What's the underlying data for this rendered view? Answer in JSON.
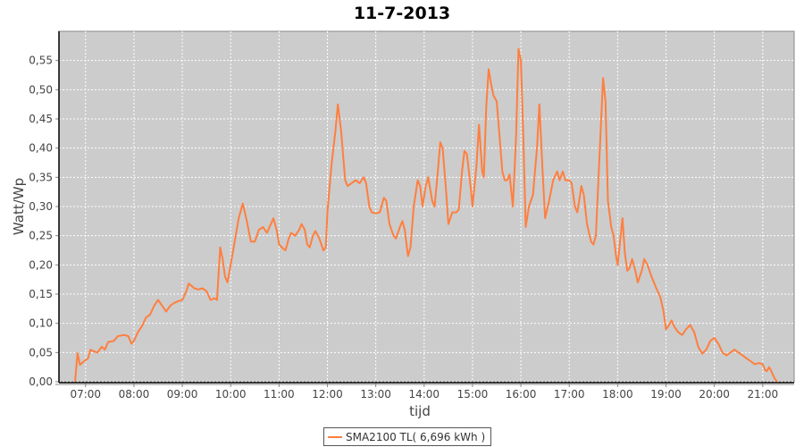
{
  "chart_data": {
    "type": "line",
    "title": "11-7-2013",
    "xlabel": "tijd",
    "ylabel": "Watt/Wp",
    "xlim": [
      "06:27",
      "21:39"
    ],
    "ylim": [
      0,
      0.6
    ],
    "grid": true,
    "legend_placement": "bottom",
    "plot_background": "#cccccc",
    "x_ticks": [
      "07:00",
      "08:00",
      "09:00",
      "10:00",
      "11:00",
      "12:00",
      "13:00",
      "14:00",
      "15:00",
      "16:00",
      "17:00",
      "18:00",
      "19:00",
      "20:00",
      "21:00"
    ],
    "y_ticks": [
      "0,00",
      "0,05",
      "0,10",
      "0,15",
      "0,20",
      "0,25",
      "0,30",
      "0,35",
      "0,40",
      "0,45",
      "0,50",
      "0,55"
    ],
    "series": [
      {
        "name": "SMA2100 TL( 6,696 kWh )",
        "color": "#ff7f3f",
        "x": [
          "06:47",
          "06:50",
          "06:53",
          "06:58",
          "07:03",
          "07:06",
          "07:10",
          "07:15",
          "07:20",
          "07:24",
          "07:28",
          "07:35",
          "07:40",
          "07:48",
          "07:53",
          "07:57",
          "08:00",
          "08:05",
          "08:10",
          "08:15",
          "08:20",
          "08:25",
          "08:30",
          "08:35",
          "08:40",
          "08:45",
          "08:50",
          "08:55",
          "09:00",
          "09:05",
          "09:08",
          "09:15",
          "09:20",
          "09:25",
          "09:30",
          "09:35",
          "09:40",
          "09:43",
          "09:47",
          "09:50",
          "09:53",
          "09:56",
          "10:00",
          "10:05",
          "10:10",
          "10:15",
          "10:20",
          "10:25",
          "10:30",
          "10:35",
          "10:40",
          "10:45",
          "10:50",
          "10:53",
          "10:57",
          "11:00",
          "11:05",
          "11:08",
          "11:12",
          "11:15",
          "11:20",
          "11:25",
          "11:28",
          "11:32",
          "11:35",
          "11:38",
          "11:42",
          "11:45",
          "11:50",
          "11:55",
          "11:58",
          "12:00",
          "12:05",
          "12:10",
          "12:13",
          "12:17",
          "12:22",
          "12:25",
          "12:30",
          "12:35",
          "12:40",
          "12:45",
          "12:48",
          "12:52",
          "12:55",
          "13:00",
          "13:05",
          "13:10",
          "13:13",
          "13:17",
          "13:22",
          "13:25",
          "13:30",
          "13:33",
          "13:36",
          "13:40",
          "13:43",
          "13:47",
          "13:52",
          "13:55",
          "13:58",
          "14:02",
          "14:05",
          "14:10",
          "14:13",
          "14:17",
          "14:20",
          "14:23",
          "14:27",
          "14:30",
          "14:35",
          "14:40",
          "14:43",
          "14:47",
          "14:50",
          "14:53",
          "14:58",
          "15:00",
          "15:05",
          "15:08",
          "15:12",
          "15:14",
          "15:17",
          "15:20",
          "15:23",
          "15:26",
          "15:30",
          "15:33",
          "15:37",
          "15:40",
          "15:43",
          "15:46",
          "15:50",
          "15:54",
          "15:57",
          "16:00",
          "16:03",
          "16:06",
          "16:10",
          "16:15",
          "16:20",
          "16:23",
          "16:27",
          "16:30",
          "16:35",
          "16:40",
          "16:45",
          "16:48",
          "16:52",
          "16:55",
          "17:00",
          "17:03",
          "17:07",
          "17:10",
          "17:15",
          "17:18",
          "17:22",
          "17:27",
          "17:30",
          "17:33",
          "17:38",
          "17:42",
          "17:45",
          "17:48",
          "17:52",
          "17:55",
          "17:58",
          "18:00",
          "18:03",
          "18:06",
          "18:09",
          "18:12",
          "18:15",
          "18:18",
          "18:22",
          "18:25",
          "18:30",
          "18:33",
          "18:37",
          "18:42",
          "18:48",
          "18:53",
          "18:57",
          "19:00",
          "19:03",
          "19:07",
          "19:10",
          "19:15",
          "19:20",
          "19:25",
          "19:30",
          "19:35",
          "19:40",
          "19:45",
          "19:50",
          "19:55",
          "20:00",
          "20:05",
          "20:10",
          "20:15",
          "20:20",
          "20:25",
          "20:30",
          "20:35",
          "20:40",
          "20:45",
          "20:50",
          "20:55",
          "21:00",
          "21:03",
          "21:05",
          "21:08",
          "21:10",
          "21:15",
          "21:18"
        ],
        "values": [
          0.0,
          0.049,
          0.029,
          0.035,
          0.04,
          0.055,
          0.052,
          0.05,
          0.06,
          0.055,
          0.068,
          0.07,
          0.078,
          0.08,
          0.078,
          0.065,
          0.07,
          0.085,
          0.095,
          0.11,
          0.115,
          0.13,
          0.14,
          0.13,
          0.12,
          0.13,
          0.135,
          0.138,
          0.14,
          0.155,
          0.168,
          0.16,
          0.158,
          0.16,
          0.155,
          0.14,
          0.143,
          0.14,
          0.23,
          0.21,
          0.18,
          0.17,
          0.2,
          0.24,
          0.28,
          0.305,
          0.275,
          0.24,
          0.24,
          0.26,
          0.265,
          0.255,
          0.27,
          0.28,
          0.26,
          0.235,
          0.228,
          0.225,
          0.245,
          0.255,
          0.25,
          0.26,
          0.27,
          0.26,
          0.235,
          0.23,
          0.25,
          0.258,
          0.245,
          0.225,
          0.23,
          0.29,
          0.37,
          0.43,
          0.475,
          0.43,
          0.345,
          0.335,
          0.34,
          0.345,
          0.34,
          0.35,
          0.34,
          0.3,
          0.29,
          0.288,
          0.29,
          0.315,
          0.31,
          0.27,
          0.25,
          0.245,
          0.265,
          0.275,
          0.26,
          0.215,
          0.23,
          0.3,
          0.345,
          0.335,
          0.3,
          0.335,
          0.35,
          0.31,
          0.3,
          0.36,
          0.41,
          0.4,
          0.33,
          0.27,
          0.29,
          0.29,
          0.295,
          0.36,
          0.395,
          0.39,
          0.33,
          0.3,
          0.37,
          0.44,
          0.36,
          0.35,
          0.47,
          0.535,
          0.51,
          0.49,
          0.48,
          0.43,
          0.36,
          0.345,
          0.345,
          0.355,
          0.3,
          0.42,
          0.57,
          0.55,
          0.42,
          0.265,
          0.3,
          0.32,
          0.4,
          0.475,
          0.36,
          0.28,
          0.31,
          0.345,
          0.36,
          0.345,
          0.36,
          0.345,
          0.345,
          0.34,
          0.3,
          0.29,
          0.335,
          0.32,
          0.27,
          0.24,
          0.235,
          0.25,
          0.4,
          0.52,
          0.48,
          0.31,
          0.265,
          0.25,
          0.215,
          0.2,
          0.24,
          0.28,
          0.22,
          0.19,
          0.195,
          0.21,
          0.19,
          0.17,
          0.19,
          0.21,
          0.2,
          0.18,
          0.16,
          0.145,
          0.12,
          0.09,
          0.095,
          0.105,
          0.095,
          0.085,
          0.08,
          0.09,
          0.097,
          0.085,
          0.06,
          0.048,
          0.055,
          0.07,
          0.075,
          0.065,
          0.05,
          0.045,
          0.05,
          0.055,
          0.05,
          0.045,
          0.04,
          0.035,
          0.03,
          0.032,
          0.03,
          0.02,
          0.018,
          0.025,
          0.02,
          0.005,
          0.0
        ]
      }
    ]
  }
}
